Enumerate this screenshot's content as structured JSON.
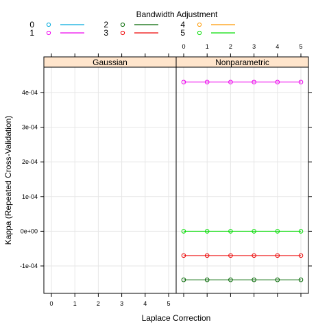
{
  "chart_data": {
    "type": "line",
    "legend": {
      "title": "Bandwidth Adjustment",
      "placement": "top",
      "entries": [
        {
          "label": "0",
          "color": "#00aadd"
        },
        {
          "label": "1",
          "color": "#ee00ee"
        },
        {
          "label": "2",
          "color": "#006600"
        },
        {
          "label": "3",
          "color": "#ee0000"
        },
        {
          "label": "4",
          "color": "#ff9900"
        },
        {
          "label": "5",
          "color": "#00dd00"
        }
      ]
    },
    "xlabel": "Laplace Correction",
    "ylabel": "Kappa (Repeated Cross-Validation)",
    "x_ticks": [
      "0",
      "1",
      "2",
      "3",
      "4",
      "5"
    ],
    "y_ticks": [
      {
        "value": -0.0001,
        "label": "-1e-04"
      },
      {
        "value": 0.0,
        "label": "0e+00"
      },
      {
        "value": 0.0001,
        "label": "1e-04"
      },
      {
        "value": 0.0002,
        "label": "2e-04"
      },
      {
        "value": 0.0003,
        "label": "3e-04"
      },
      {
        "value": 0.0004,
        "label": "4e-04"
      }
    ],
    "xlim": [
      -0.5,
      5.5
    ],
    "ylim": [
      -0.000179,
      0.000473
    ],
    "grid": true,
    "panels": [
      {
        "name": "Gaussian",
        "series": []
      },
      {
        "name": "Nonparametric",
        "series": [
          {
            "name": "1",
            "color": "#ee00ee",
            "x": [
              0,
              1,
              2,
              3,
              4,
              5
            ],
            "values": [
              0.00043,
              0.00043,
              0.00043,
              0.00043,
              0.00043,
              0.00043
            ]
          },
          {
            "name": "5",
            "color": "#00dd00",
            "x": [
              0,
              1,
              2,
              3,
              4,
              5
            ],
            "values": [
              0.0,
              0.0,
              0.0,
              0.0,
              0.0,
              0.0
            ]
          },
          {
            "name": "3",
            "color": "#ee0000",
            "x": [
              0,
              1,
              2,
              3,
              4,
              5
            ],
            "values": [
              -7e-05,
              -7e-05,
              -7e-05,
              -7e-05,
              -7e-05,
              -7e-05
            ]
          },
          {
            "name": "2",
            "color": "#006600",
            "x": [
              0,
              1,
              2,
              3,
              4,
              5
            ],
            "values": [
              -0.00014,
              -0.00014,
              -0.00014,
              -0.00014,
              -0.00014,
              -0.00014
            ]
          }
        ]
      }
    ]
  }
}
